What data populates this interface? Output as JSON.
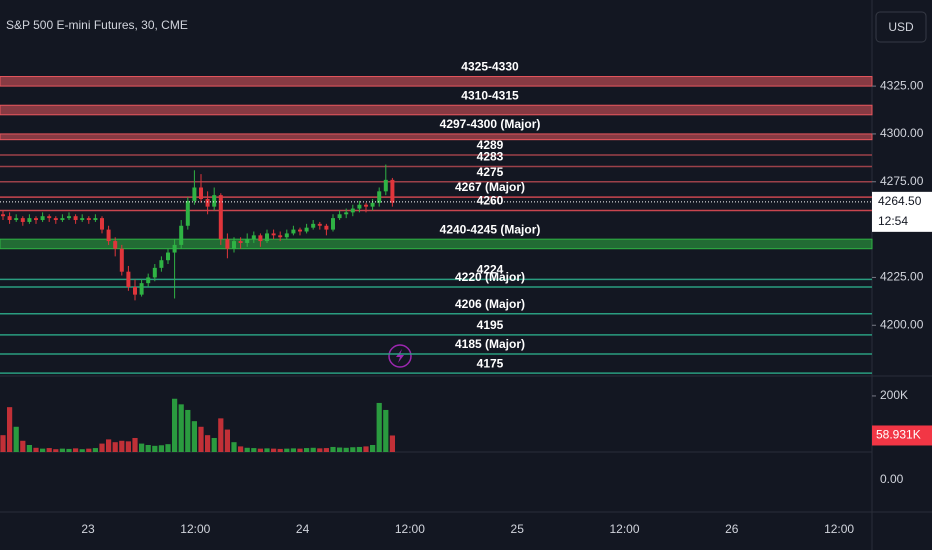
{
  "header": {
    "title": "S&P 500 E-mini Futures, 30, CME",
    "currency": "USD"
  },
  "chart_data": {
    "type": "candlestick",
    "ylim": [
      4174,
      4370
    ],
    "yticks": [
      {
        "value": 4325,
        "label": "4325.00"
      },
      {
        "value": 4300,
        "label": "4300.00"
      },
      {
        "value": 4275,
        "label": "4275.00"
      },
      {
        "value": 4225,
        "label": "4225.00"
      },
      {
        "value": 4200,
        "label": "4200.00"
      }
    ],
    "up_color": "#2fb344",
    "down_color": "#e0353b",
    "ohlc": [
      [
        4258,
        4260,
        4255,
        4257
      ],
      [
        4257,
        4259,
        4253,
        4255
      ],
      [
        4255,
        4258,
        4254,
        4256
      ],
      [
        4256,
        4257,
        4252,
        4254
      ],
      [
        4254,
        4258,
        4253,
        4256
      ],
      [
        4256,
        4257,
        4253,
        4255
      ],
      [
        4255,
        4259,
        4254,
        4257
      ],
      [
        4257,
        4258,
        4254,
        4256
      ],
      [
        4256,
        4257,
        4253,
        4255
      ],
      [
        4255,
        4258,
        4254,
        4256
      ],
      [
        4256,
        4259,
        4255,
        4257
      ],
      [
        4257,
        4258,
        4253,
        4255
      ],
      [
        4255,
        4258,
        4254,
        4256
      ],
      [
        4256,
        4257,
        4253,
        4255
      ],
      [
        4255,
        4258,
        4254,
        4256
      ],
      [
        4256,
        4257,
        4248,
        4250
      ],
      [
        4250,
        4252,
        4242,
        4244
      ],
      [
        4244,
        4246,
        4236,
        4240
      ],
      [
        4240,
        4242,
        4226,
        4228
      ],
      [
        4228,
        4231,
        4218,
        4220
      ],
      [
        4220,
        4224,
        4213,
        4216
      ],
      [
        4216,
        4224,
        4215,
        4222
      ],
      [
        4222,
        4227,
        4220,
        4225
      ],
      [
        4225,
        4232,
        4223,
        4230
      ],
      [
        4230,
        4236,
        4228,
        4234
      ],
      [
        4234,
        4240,
        4232,
        4238
      ],
      [
        4238,
        4245,
        4214,
        4242
      ],
      [
        4242,
        4255,
        4240,
        4252
      ],
      [
        4252,
        4267,
        4250,
        4265
      ],
      [
        4265,
        4281,
        4263,
        4272
      ],
      [
        4272,
        4279,
        4264,
        4266
      ],
      [
        4266,
        4270,
        4258,
        4262
      ],
      [
        4262,
        4272,
        4260,
        4268
      ],
      [
        4268,
        4269,
        4242,
        4245
      ],
      [
        4245,
        4248,
        4235,
        4240
      ],
      [
        4240,
        4246,
        4238,
        4244
      ],
      [
        4244,
        4246,
        4240,
        4243
      ],
      [
        4243,
        4248,
        4241,
        4245
      ],
      [
        4245,
        4249,
        4243,
        4247
      ],
      [
        4247,
        4248,
        4241,
        4244
      ],
      [
        4244,
        4250,
        4243,
        4248
      ],
      [
        4248,
        4250,
        4245,
        4247
      ],
      [
        4247,
        4249,
        4244,
        4246
      ],
      [
        4246,
        4250,
        4245,
        4248
      ],
      [
        4248,
        4252,
        4247,
        4250
      ],
      [
        4250,
        4251,
        4247,
        4249
      ],
      [
        4249,
        4253,
        4248,
        4251
      ],
      [
        4251,
        4255,
        4250,
        4253
      ],
      [
        4253,
        4254,
        4250,
        4252
      ],
      [
        4252,
        4253,
        4247,
        4250
      ],
      [
        4250,
        4258,
        4249,
        4256
      ],
      [
        4256,
        4260,
        4255,
        4258
      ],
      [
        4258,
        4261,
        4256,
        4259
      ],
      [
        4259,
        4263,
        4257,
        4261
      ],
      [
        4261,
        4265,
        4259,
        4263
      ],
      [
        4263,
        4264,
        4259,
        4262
      ],
      [
        4262,
        4266,
        4260,
        4264
      ],
      [
        4264,
        4272,
        4262,
        4270
      ],
      [
        4270,
        4284,
        4268,
        4276
      ],
      [
        4276,
        4277,
        4262,
        4264
      ]
    ],
    "levels": [
      {
        "low": 4325,
        "high": 4330,
        "label": "4325-4330",
        "color": "#e8575e"
      },
      {
        "low": 4310,
        "high": 4315,
        "label": "4310-4315",
        "color": "#e8575e"
      },
      {
        "low": 4297,
        "high": 4300,
        "label": "4297-4300 (Major)",
        "color": "#e8575e"
      },
      {
        "value": 4289,
        "label": "4289",
        "color": "#9c4149"
      },
      {
        "value": 4283,
        "label": "4283",
        "color": "#9c4149"
      },
      {
        "value": 4275,
        "label": "4275",
        "color": "#9c4149"
      },
      {
        "value": 4267,
        "label": "4267 (Major)",
        "color": "#c9464f"
      },
      {
        "value": 4260,
        "label": "4260",
        "color": "#c9464f"
      },
      {
        "low": 4240,
        "high": 4245,
        "label": "4240-4245 (Major)",
        "color": "#2fb344"
      },
      {
        "value": 4224,
        "label": "4224",
        "color": "#2a9d80"
      },
      {
        "value": 4220,
        "label": "4220 (Major)",
        "color": "#2a9d80"
      },
      {
        "value": 4206,
        "label": "4206 (Major)",
        "color": "#2a9d80"
      },
      {
        "value": 4195,
        "label": "4195",
        "color": "#2a9d80"
      },
      {
        "value": 4185,
        "label": "4185 (Major)",
        "color": "#2a9d80"
      },
      {
        "value": 4175,
        "label": "4175",
        "color": "#2a9d80"
      }
    ],
    "last_price": {
      "value": 4264.5,
      "label": "4264.50"
    },
    "countdown": "12:54",
    "volume": {
      "ylim": [
        0,
        264000
      ],
      "yticks": [
        {
          "value": 200000,
          "label": "200K"
        }
      ],
      "values": [
        60000,
        160000,
        90000,
        40000,
        25000,
        15000,
        12000,
        14000,
        10000,
        12000,
        11000,
        13000,
        10000,
        12000,
        14000,
        30000,
        45000,
        35000,
        40000,
        38000,
        50000,
        30000,
        25000,
        22000,
        24000,
        28000,
        190000,
        170000,
        150000,
        110000,
        90000,
        60000,
        50000,
        120000,
        80000,
        35000,
        20000,
        15000,
        14000,
        12000,
        13000,
        12000,
        11000,
        12000,
        13000,
        12000,
        14000,
        15000,
        13000,
        14000,
        18000,
        16000,
        15000,
        17000,
        18000,
        20000,
        25000,
        175000,
        150000,
        58931
      ],
      "last": {
        "value": 58931,
        "label": "58.931K"
      }
    },
    "indicator_tick": {
      "value": 0,
      "label": "0.00"
    },
    "xticks": [
      "23",
      "12:00",
      "24",
      "12:00",
      "25",
      "12:00",
      "26",
      "12:00"
    ]
  }
}
